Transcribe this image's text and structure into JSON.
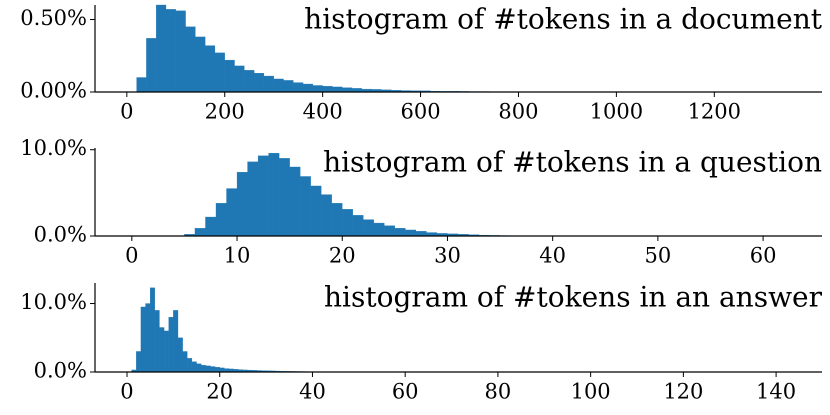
{
  "chart_data": [
    {
      "type": "histogram",
      "title": "histogram of #tokens in a document",
      "color": "#1f77b4",
      "bins": [
        20,
        40,
        60,
        80,
        100,
        120,
        140,
        160,
        180,
        200,
        220,
        240,
        260,
        280,
        300,
        320,
        340,
        360,
        380,
        400,
        420,
        440,
        460,
        480,
        500,
        520,
        540,
        560,
        580,
        600,
        620,
        640,
        660,
        680,
        700,
        720,
        740
      ],
      "values": [
        0.1,
        0.37,
        0.6,
        0.57,
        0.56,
        0.45,
        0.38,
        0.32,
        0.27,
        0.22,
        0.18,
        0.15,
        0.13,
        0.11,
        0.09,
        0.08,
        0.065,
        0.055,
        0.045,
        0.04,
        0.035,
        0.03,
        0.025,
        0.02,
        0.018,
        0.015,
        0.012,
        0.01,
        0.009,
        0.008,
        0.006,
        0.005,
        0.005,
        0.004,
        0.003,
        0.003
      ],
      "xlim": [
        -65,
        1420
      ],
      "ylim": [
        0,
        0.6
      ],
      "xticks": [
        0,
        200,
        400,
        600,
        800,
        1000,
        1200
      ],
      "yticks": [
        {
          "value": 0,
          "label": "0.00%"
        },
        {
          "value": 0.5,
          "label": "0.50%"
        }
      ]
    },
    {
      "type": "histogram",
      "title": "histogram of #tokens in a question",
      "color": "#1f77b4",
      "bins": [
        5,
        6,
        7,
        8,
        9,
        10,
        11,
        12,
        13,
        14,
        15,
        16,
        17,
        18,
        19,
        20,
        21,
        22,
        23,
        24,
        25,
        26,
        27,
        28,
        29,
        30,
        31,
        32,
        33,
        34,
        35,
        36
      ],
      "values": [
        0.2,
        0.9,
        2.2,
        3.8,
        5.5,
        7.4,
        8.6,
        9.3,
        9.6,
        9.0,
        8.0,
        6.9,
        5.8,
        4.8,
        3.8,
        3.1,
        2.4,
        1.9,
        1.5,
        1.2,
        0.9,
        0.7,
        0.55,
        0.4,
        0.3,
        0.25,
        0.2,
        0.15,
        0.1,
        0.07,
        0.05
      ],
      "xlim": [
        -3.5,
        65.6
      ],
      "ylim": [
        0,
        10.2
      ],
      "xticks": [
        0,
        10,
        20,
        30,
        40,
        50,
        60
      ],
      "yticks": [
        {
          "value": 0,
          "label": "0.0%"
        },
        {
          "value": 10,
          "label": "10.0%"
        }
      ]
    },
    {
      "type": "histogram",
      "title": "histogram of #tokens in an answer",
      "color": "#1f77b4",
      "bins": [
        1,
        2,
        3,
        4,
        5,
        6,
        7,
        8,
        9,
        10,
        11,
        12,
        13,
        14,
        15,
        16,
        17,
        18,
        19,
        20,
        21,
        22,
        23,
        24,
        25,
        26,
        27,
        28,
        29,
        30,
        31,
        32,
        33,
        34,
        35,
        36,
        37,
        38,
        39,
        40
      ],
      "values": [
        0.3,
        3,
        9.5,
        10,
        12.3,
        9,
        6.5,
        6,
        8,
        9,
        5,
        3,
        2,
        1.5,
        1.2,
        1,
        0.9,
        0.8,
        0.7,
        0.6,
        0.5,
        0.45,
        0.4,
        0.35,
        0.3,
        0.28,
        0.25,
        0.22,
        0.2,
        0.18,
        0.16,
        0.14,
        0.12,
        0.1,
        0.09,
        0.08,
        0.07,
        0.06,
        0.05
      ],
      "xlim": [
        -6.9,
        149.9
      ],
      "ylim": [
        0,
        13
      ],
      "xticks": [
        0,
        20,
        40,
        60,
        80,
        100,
        120,
        140
      ],
      "yticks": [
        {
          "value": 0,
          "label": "0.0%"
        },
        {
          "value": 10,
          "label": "10.0%"
        }
      ]
    }
  ]
}
